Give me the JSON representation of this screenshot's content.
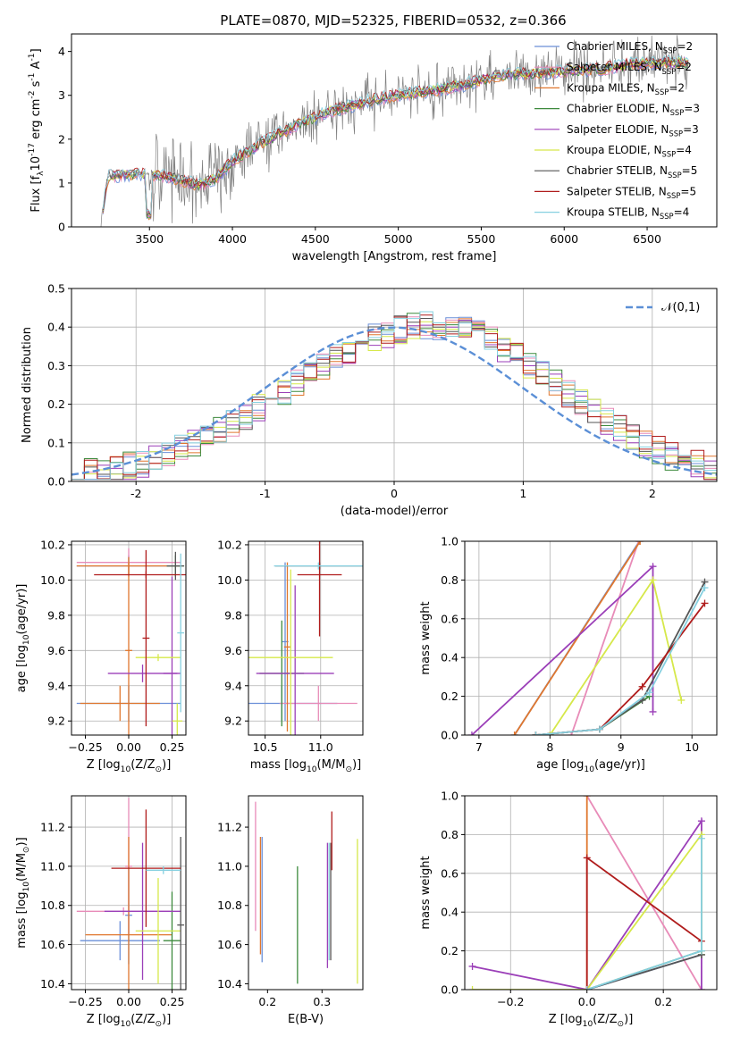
{
  "figure_title": "PLATE=0870, MJD=52325, FIBERID=0532, z=0.366",
  "colors": {
    "chabrier_miles": "#6a8fd8",
    "salpeter_miles": "#e88bb8",
    "kroupa_miles": "#e0772e",
    "chabrier_elodie": "#3d8a3d",
    "salpeter_elodie": "#9b3fb8",
    "kroupa_elodie": "#d6e84a",
    "chabrier_stelib": "#555555",
    "salpeter_stelib": "#b01c1c",
    "kroupa_stelib": "#86d0e0",
    "spectrum": "#808080",
    "gaussian": "#5b8fd6",
    "grid": "#b0b0b0"
  },
  "chart_data": [
    {
      "id": "spectrum",
      "type": "line",
      "xlabel": "wavelength [Angstrom, rest frame]",
      "ylabel": "Flux [f$_\\lambda$10$^{-17}$ erg cm$^{-2}$ s$^{-1}$ A$^{-1}$]",
      "xlim": [
        3030,
        6920
      ],
      "ylim": [
        0,
        4.4
      ],
      "xticks": [
        3500,
        4000,
        4500,
        5000,
        5500,
        6000,
        6500
      ],
      "yticks": [
        0,
        1,
        2,
        3,
        4
      ],
      "grid": false,
      "legend_position": "upper right",
      "data_anchors": {
        "x": [
          3200,
          3250,
          3400,
          3500,
          3600,
          3700,
          3800,
          3900,
          4000,
          4200,
          4400,
          4600,
          4800,
          5000,
          5200,
          5400,
          5600,
          5800,
          6000,
          6200,
          6400,
          6600,
          6750
        ],
        "y": [
          0.0,
          1.15,
          1.2,
          1.2,
          1.15,
          1.05,
          0.95,
          1.1,
          1.5,
          1.95,
          2.35,
          2.65,
          2.85,
          3.0,
          3.1,
          3.25,
          3.45,
          3.5,
          3.55,
          3.6,
          3.7,
          3.75,
          3.75
        ]
      },
      "legend": [
        {
          "label": "Chabrier MILES, N$_{SSP}$=2",
          "color_key": "chabrier_miles"
        },
        {
          "label": "Salpeter MILES, N$_{SSP}$=2",
          "color_key": "salpeter_miles"
        },
        {
          "label": "Kroupa MILES, N$_{SSP}$=2",
          "color_key": "kroupa_miles"
        },
        {
          "label": "Chabrier ELODIE, N$_{SSP}$=3",
          "color_key": "chabrier_elodie"
        },
        {
          "label": "Salpeter ELODIE, N$_{SSP}$=3",
          "color_key": "salpeter_elodie"
        },
        {
          "label": "Kroupa ELODIE, N$_{SSP}$=4",
          "color_key": "kroupa_elodie"
        },
        {
          "label": "Chabrier STELIB, N$_{SSP}$=5",
          "color_key": "chabrier_stelib"
        },
        {
          "label": "Salpeter STELIB, N$_{SSP}$=5",
          "color_key": "salpeter_stelib"
        },
        {
          "label": "Kroupa STELIB, N$_{SSP}$=4",
          "color_key": "kroupa_stelib"
        }
      ]
    },
    {
      "id": "residuals",
      "type": "line",
      "xlabel": "(data-model)/error",
      "ylabel": "Normed distribution",
      "xlim": [
        -2.5,
        2.5
      ],
      "ylim": [
        0,
        0.5
      ],
      "xticks": [
        -2,
        -1,
        0,
        1,
        2
      ],
      "yticks": [
        0.0,
        0.1,
        0.2,
        0.3,
        0.4,
        0.5
      ],
      "grid": true,
      "legend_position": "upper right",
      "legend": [
        {
          "label": "$\\mathcal{N}(0,1)$",
          "color_key": "gaussian"
        }
      ],
      "hist_bin_width": 0.1,
      "hist_bin_start": -2.5,
      "hist_base": [
        0.018,
        0.022,
        0.027,
        0.033,
        0.04,
        0.048,
        0.058,
        0.07,
        0.083,
        0.098,
        0.114,
        0.132,
        0.151,
        0.171,
        0.192,
        0.213,
        0.236,
        0.258,
        0.28,
        0.301,
        0.321,
        0.34,
        0.357,
        0.372,
        0.384,
        0.394,
        0.4,
        0.404,
        0.404,
        0.4,
        0.392,
        0.38,
        0.365,
        0.346,
        0.325,
        0.302,
        0.278,
        0.253,
        0.228,
        0.203,
        0.179,
        0.156,
        0.134,
        0.114,
        0.096,
        0.08,
        0.066,
        0.054,
        0.043,
        0.034
      ]
    },
    {
      "id": "age_vs_Z",
      "type": "scatter",
      "xlabel": "Z [log$_{10}$(Z/Z$_\\odot$)]",
      "ylabel": "age  [log$_{10}$(age/yr)]",
      "xlim": [
        -0.33,
        0.33
      ],
      "ylim": [
        9.12,
        10.22
      ],
      "xticks": [
        -0.25,
        0.0,
        0.25
      ],
      "xtick_labels": [
        "−0.25",
        "0.00",
        "0.25"
      ],
      "yticks": [
        9.2,
        9.4,
        9.6,
        9.8,
        10.0,
        10.2
      ],
      "grid": true,
      "series": [
        {
          "color_key": "chabrier_miles",
          "x": 0.0,
          "xerr": 0.3,
          "y": 10.08,
          "yerr": 0.06
        },
        {
          "color_key": "chabrier_miles",
          "x": 0.0,
          "xerr": 0.3,
          "y": 9.3,
          "yerr": 0.1
        },
        {
          "color_key": "salpeter_miles",
          "x": 0.0,
          "xerr": 0.3,
          "y": 10.1,
          "yerr": 0.08
        },
        {
          "color_key": "kroupa_miles",
          "x": 0.0,
          "xerr": 0.3,
          "y": 10.08,
          "yerr": 0.05
        },
        {
          "color_key": "kroupa_miles",
          "x": -0.05,
          "xerr": 0.23,
          "y": 9.3,
          "yerr": 0.1
        },
        {
          "color_key": "kroupa_miles",
          "x": 0.0,
          "xerr": 0.02,
          "y": 9.6,
          "yerr": 0.5
        },
        {
          "color_key": "chabrier_elodie",
          "x": 0.27,
          "xerr": 0.05,
          "y": 10.08,
          "yerr": 0.06
        },
        {
          "color_key": "salpeter_elodie",
          "x": 0.25,
          "xerr": 0.05,
          "y": 9.47,
          "yerr": 0.55
        },
        {
          "color_key": "salpeter_elodie",
          "x": 0.08,
          "xerr": 0.2,
          "y": 9.47,
          "yerr": 0.05
        },
        {
          "color_key": "kroupa_elodie",
          "x": 0.28,
          "xerr": 0.03,
          "y": 9.2,
          "yerr": 0.1
        },
        {
          "color_key": "kroupa_elodie",
          "x": 0.17,
          "xerr": 0.13,
          "y": 9.56,
          "yerr": 0.02
        },
        {
          "color_key": "chabrier_stelib",
          "x": 0.27,
          "xerr": 0.05,
          "y": 10.08,
          "yerr": 0.08
        },
        {
          "color_key": "salpeter_stelib",
          "x": 0.1,
          "xerr": 0.3,
          "y": 10.03,
          "yerr": 0.02
        },
        {
          "color_key": "salpeter_stelib",
          "x": 0.1,
          "xerr": 0.02,
          "y": 9.67,
          "yerr": 0.5
        },
        {
          "color_key": "kroupa_stelib",
          "x": 0.3,
          "xerr": 0.02,
          "y": 9.7,
          "yerr": 0.45
        }
      ]
    },
    {
      "id": "age_vs_mass",
      "type": "scatter",
      "xlabel": "mass [log$_{10}$(M/M$_\\odot$)]",
      "xlim": [
        10.35,
        11.38
      ],
      "ylim": [
        9.12,
        10.22
      ],
      "xticks": [
        10.5,
        11.0
      ],
      "xtick_labels": [
        "10.5",
        "11.0"
      ],
      "yticks": [
        9.2,
        9.4,
        9.6,
        9.8,
        10.0,
        10.2
      ],
      "grid": true,
      "series": [
        {
          "color_key": "chabrier_miles",
          "x": 10.65,
          "xerr": 0.5,
          "y": 9.3,
          "yerr": 0.1
        },
        {
          "color_key": "chabrier_miles",
          "x": 10.68,
          "xerr": 0.03,
          "y": 9.65,
          "yerr": 0.45
        },
        {
          "color_key": "salpeter_miles",
          "x": 10.98,
          "xerr": 0.35,
          "y": 9.3,
          "yerr": 0.1
        },
        {
          "color_key": "kroupa_miles",
          "x": 10.7,
          "xerr": 0.03,
          "y": 9.62,
          "yerr": 0.48
        },
        {
          "color_key": "chabrier_elodie",
          "x": 10.65,
          "xerr": 0.2,
          "y": 9.47,
          "yerr": 0.3
        },
        {
          "color_key": "salpeter_elodie",
          "x": 10.77,
          "xerr": 0.35,
          "y": 9.47,
          "yerr": 0.5
        },
        {
          "color_key": "kroupa_elodie",
          "x": 10.73,
          "xerr": 0.38,
          "y": 9.56,
          "yerr": 0.5
        },
        {
          "color_key": "chabrier_stelib",
          "x": 10.99,
          "xerr": 0.4,
          "y": 10.08,
          "yerr": 0.02
        },
        {
          "color_key": "salpeter_stelib",
          "x": 10.99,
          "xerr": 0.2,
          "y": 10.03,
          "yerr": 0.35
        },
        {
          "color_key": "kroupa_stelib",
          "x": 10.98,
          "xerr": 0.4,
          "y": 10.08,
          "yerr": 0.02
        }
      ]
    },
    {
      "id": "mass_weight_vs_age",
      "type": "line",
      "xlabel": "age  [log$_{10}$(age/yr)]",
      "ylabel": "mass weight",
      "xlim": [
        6.8,
        10.35
      ],
      "ylim": [
        0,
        1
      ],
      "xticks": [
        7,
        8,
        9,
        10
      ],
      "yticks": [
        0.0,
        0.2,
        0.4,
        0.6,
        0.8,
        1.0
      ],
      "grid": true,
      "series": [
        {
          "color_key": "chabrier_miles",
          "x": [
            7.5,
            9.26
          ],
          "y": [
            0.0,
            1.0
          ]
        },
        {
          "color_key": "salpeter_miles",
          "x": [
            8.3,
            9.25
          ],
          "y": [
            0.0,
            1.0
          ]
        },
        {
          "color_key": "kroupa_miles",
          "x": [
            7.5,
            9.27
          ],
          "y": [
            0.0,
            1.0
          ]
        },
        {
          "color_key": "chabrier_elodie",
          "x": [
            7.8,
            8.7,
            9.4
          ],
          "y": [
            0.0,
            0.03,
            0.2
          ]
        },
        {
          "color_key": "salpeter_elodie",
          "x": [
            6.9,
            9.45,
            9.45
          ],
          "y": [
            0.0,
            0.87,
            0.12
          ]
        },
        {
          "color_key": "kroupa_elodie",
          "x": [
            8.0,
            9.45,
            9.85
          ],
          "y": [
            0.0,
            0.8,
            0.18
          ]
        },
        {
          "color_key": "chabrier_stelib",
          "x": [
            7.8,
            8.7,
            9.3,
            10.18
          ],
          "y": [
            0.0,
            0.03,
            0.18,
            0.79
          ]
        },
        {
          "color_key": "salpeter_stelib",
          "x": [
            7.8,
            8.7,
            9.3,
            10.18
          ],
          "y": [
            0.0,
            0.03,
            0.25,
            0.68
          ]
        },
        {
          "color_key": "kroupa_stelib",
          "x": [
            7.8,
            8.7,
            9.4,
            10.18
          ],
          "y": [
            0.0,
            0.03,
            0.22,
            0.76
          ]
        }
      ]
    },
    {
      "id": "mass_vs_Z",
      "type": "scatter",
      "xlabel": "Z [log$_{10}$(Z/Z$_\\odot$)]",
      "ylabel": "mass [log$_{10}$(M/M$_\\odot$)]",
      "xlim": [
        -0.33,
        0.33
      ],
      "ylim": [
        10.37,
        11.36
      ],
      "xticks": [
        -0.25,
        0.0,
        0.25
      ],
      "xtick_labels": [
        "−0.25",
        "0.00",
        "0.25"
      ],
      "yticks": [
        10.4,
        10.6,
        10.8,
        11.0,
        11.2
      ],
      "grid": true,
      "series": [
        {
          "color_key": "chabrier_miles",
          "x": -0.05,
          "xerr": 0.23,
          "y": 10.62,
          "yerr": 0.1
        },
        {
          "color_key": "chabrier_miles",
          "x": 0.0,
          "xerr": 0.02,
          "y": 10.75,
          "yerr": 0.25
        },
        {
          "color_key": "salpeter_miles",
          "x": -0.03,
          "xerr": 0.27,
          "y": 10.77,
          "yerr": 0.02
        },
        {
          "color_key": "salpeter_miles",
          "x": 0.0,
          "xerr": 0.02,
          "y": 11.0,
          "yerr": 0.35
        },
        {
          "color_key": "kroupa_miles",
          "x": 0.0,
          "xerr": 0.25,
          "y": 10.65,
          "yerr": 0.5
        },
        {
          "color_key": "chabrier_elodie",
          "x": 0.25,
          "xerr": 0.05,
          "y": 10.62,
          "yerr": 0.25
        },
        {
          "color_key": "salpeter_elodie",
          "x": 0.08,
          "xerr": 0.22,
          "y": 10.77,
          "yerr": 0.35
        },
        {
          "color_key": "kroupa_elodie",
          "x": 0.17,
          "xerr": 0.13,
          "y": 10.67,
          "yerr": 0.27
        },
        {
          "color_key": "chabrier_stelib",
          "x": 0.3,
          "xerr": 0.02,
          "y": 10.7,
          "yerr": 0.45
        },
        {
          "color_key": "salpeter_stelib",
          "x": 0.1,
          "xerr": 0.2,
          "y": 10.99,
          "yerr": 0.3
        },
        {
          "color_key": "kroupa_stelib",
          "x": 0.2,
          "xerr": 0.1,
          "y": 10.98,
          "yerr": 0.02
        }
      ]
    },
    {
      "id": "mass_vs_ebv",
      "type": "scatter",
      "xlabel": "E(B-V)",
      "xlim": [
        0.165,
        0.375
      ],
      "ylim": [
        10.37,
        11.36
      ],
      "xticks": [
        0.2,
        0.3
      ],
      "xtick_labels": [
        "0.2",
        "0.3"
      ],
      "yticks": [
        10.4,
        10.6,
        10.8,
        11.0,
        11.2
      ],
      "grid": false,
      "series": [
        {
          "color_key": "chabrier_miles",
          "x": 0.19,
          "y": 10.83,
          "yerr": 0.32
        },
        {
          "color_key": "salpeter_miles",
          "x": 0.178,
          "y": 11.0,
          "yerr": 0.33
        },
        {
          "color_key": "kroupa_miles",
          "x": 0.187,
          "y": 10.85,
          "yerr": 0.3
        },
        {
          "color_key": "chabrier_elodie",
          "x": 0.255,
          "y": 10.7,
          "yerr": 0.3
        },
        {
          "color_key": "salpeter_elodie",
          "x": 0.31,
          "y": 10.8,
          "yerr": 0.32
        },
        {
          "color_key": "kroupa_elodie",
          "x": 0.365,
          "y": 10.77,
          "yerr": 0.37
        },
        {
          "color_key": "chabrier_stelib",
          "x": 0.316,
          "y": 10.82,
          "yerr": 0.3
        },
        {
          "color_key": "salpeter_stelib",
          "x": 0.318,
          "y": 11.13,
          "yerr": 0.15
        },
        {
          "color_key": "kroupa_stelib",
          "x": 0.313,
          "y": 10.82,
          "yerr": 0.3
        }
      ]
    },
    {
      "id": "mass_weight_vs_Z",
      "type": "line",
      "xlabel": "Z [log$_{10}$(Z/Z$_\\odot$)]",
      "ylabel": "mass weight",
      "xlim": [
        -0.32,
        0.34
      ],
      "ylim": [
        0,
        1
      ],
      "xticks": [
        -0.2,
        0.0,
        0.2
      ],
      "xtick_labels": [
        "−0.2",
        "0.0",
        "0.2"
      ],
      "yticks": [
        0.0,
        0.2,
        0.4,
        0.6,
        0.8,
        1.0
      ],
      "grid": true,
      "series": [
        {
          "color_key": "chabrier_miles",
          "x": [
            0.0,
            0.3
          ],
          "y": [
            0.0,
            0.18
          ]
        },
        {
          "color_key": "salpeter_miles",
          "x": [
            0.0,
            0.3
          ],
          "y": [
            1.0,
            0.0
          ]
        },
        {
          "color_key": "kroupa_miles",
          "x": [
            0.0,
            0.0
          ],
          "y": [
            0.0,
            1.0
          ]
        },
        {
          "color_key": "chabrier_elodie",
          "x": [
            0.0,
            0.3
          ],
          "y": [
            0.0,
            0.2
          ]
        },
        {
          "color_key": "salpeter_elodie",
          "x": [
            -0.3,
            0.0,
            0.3,
            0.3
          ],
          "y": [
            0.12,
            0.0,
            0.87,
            0.0
          ]
        },
        {
          "color_key": "kroupa_elodie",
          "x": [
            -0.3,
            0.0,
            0.3,
            0.3
          ],
          "y": [
            0.0,
            0.0,
            0.8,
            0.18
          ]
        },
        {
          "color_key": "chabrier_stelib",
          "x": [
            0.0,
            0.3
          ],
          "y": [
            0.0,
            0.18
          ]
        },
        {
          "color_key": "salpeter_stelib",
          "x": [
            0.0,
            0.0,
            0.3
          ],
          "y": [
            0.0,
            0.68,
            0.25
          ]
        },
        {
          "color_key": "kroupa_stelib",
          "x": [
            0.0,
            0.3,
            0.3
          ],
          "y": [
            0.0,
            0.2,
            0.78
          ]
        }
      ]
    }
  ]
}
